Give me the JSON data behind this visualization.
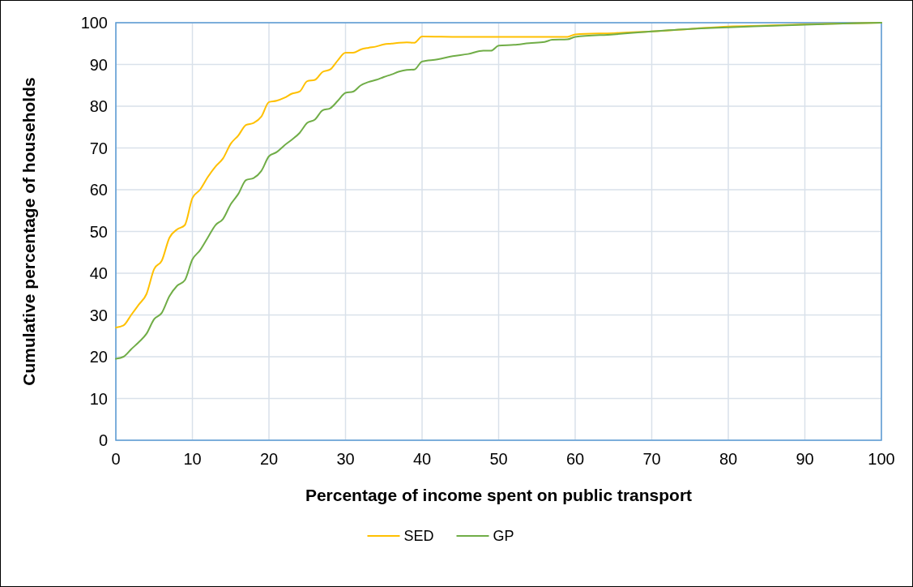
{
  "chart_data": {
    "type": "line",
    "xlabel": "Percentage of income spent on public transport",
    "ylabel": "Cumulative percentage of households",
    "series": [
      {
        "name": "SED",
        "color": "#ffc000",
        "x": [
          0,
          1,
          2,
          3,
          4,
          5,
          6,
          7,
          8,
          9,
          10,
          11,
          12,
          13,
          14,
          15,
          16,
          17,
          18,
          19,
          20,
          21,
          22,
          23,
          24,
          25,
          26,
          27,
          28,
          29,
          30,
          31,
          32,
          33,
          34,
          35,
          36,
          37,
          38,
          39,
          40,
          45,
          50,
          55,
          59,
          60,
          65,
          70,
          75,
          80,
          85,
          90,
          95,
          100
        ],
        "values": [
          27,
          27.5,
          30,
          32.5,
          35,
          41,
          43,
          48.5,
          50.5,
          51.5,
          58,
          60,
          63,
          65.5,
          67.5,
          71,
          73,
          75.5,
          76,
          77.5,
          81,
          81.3,
          82,
          83,
          83.5,
          86,
          86.3,
          88.2,
          88.8,
          91,
          92.8,
          92.8,
          93.6,
          94,
          94.3,
          94.8,
          95,
          95.2,
          95.3,
          95.2,
          96.7,
          96.6,
          96.6,
          96.6,
          96.6,
          97.2,
          97.5,
          97.9,
          98.5,
          99.1,
          99.3,
          99.6,
          99.8,
          100
        ]
      },
      {
        "name": "GP",
        "color": "#70ad47",
        "x": [
          0,
          1,
          2,
          3,
          4,
          5,
          6,
          7,
          8,
          9,
          10,
          11,
          12,
          13,
          14,
          15,
          16,
          17,
          18,
          19,
          20,
          21,
          22,
          23,
          24,
          25,
          26,
          27,
          28,
          29,
          30,
          31,
          32,
          33,
          34,
          35,
          36,
          37,
          38,
          39,
          40,
          42,
          44,
          46,
          48,
          49,
          50,
          52,
          54,
          56,
          57,
          59,
          60,
          65,
          70,
          75,
          80,
          85,
          90,
          95,
          100
        ],
        "values": [
          19.5,
          20,
          21.8,
          23.5,
          25.5,
          29,
          30.5,
          34.5,
          37,
          38.3,
          43.3,
          45.5,
          48.5,
          51.5,
          53,
          56.5,
          59,
          62.3,
          62.8,
          64.5,
          68,
          69,
          70.6,
          72,
          73.6,
          76,
          76.8,
          79,
          79.5,
          81.3,
          83.2,
          83.5,
          85,
          85.8,
          86.3,
          87,
          87.6,
          88.3,
          88.7,
          88.8,
          90.7,
          91.2,
          92,
          92.5,
          93.3,
          93.3,
          94.5,
          94.7,
          95.1,
          95.4,
          95.9,
          96,
          96.6,
          97.2,
          97.9,
          98.5,
          98.9,
          99.2,
          99.5,
          99.8,
          100
        ]
      }
    ],
    "xlim": [
      0,
      100
    ],
    "xticks": [
      0,
      10,
      20,
      30,
      40,
      50,
      60,
      70,
      80,
      90,
      100
    ],
    "ylim": [
      0,
      100
    ],
    "yticks": [
      0,
      10,
      20,
      30,
      40,
      50,
      60,
      70,
      80,
      90,
      100
    ],
    "grid": true,
    "legend": "bottom",
    "marker": "none",
    "line_style": "solid"
  }
}
